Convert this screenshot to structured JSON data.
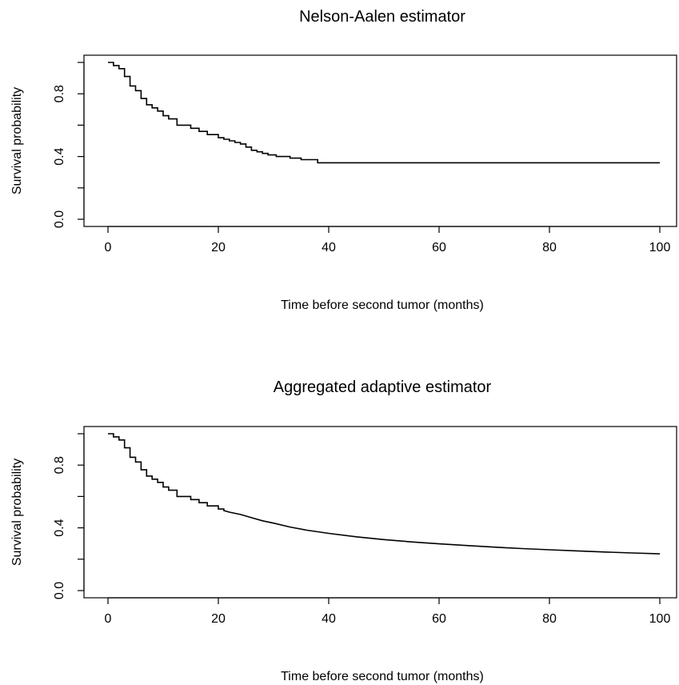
{
  "chart_data": [
    {
      "type": "line",
      "title": "Nelson-Aalen estimator",
      "xlabel": "Time before second tumor (months)",
      "ylabel": "Survival probability",
      "xlim": [
        0,
        100
      ],
      "ylim": [
        0.0,
        1.0
      ],
      "xticks": [
        0,
        20,
        40,
        60,
        80,
        100
      ],
      "xtick_labels": [
        "0",
        "20",
        "40",
        "60",
        "80",
        "100"
      ],
      "yticks": [
        0.0,
        0.2,
        0.4,
        0.6,
        0.8,
        1.0
      ],
      "ytick_labels": [
        "0.0",
        "",
        "0.4",
        "",
        "0.8",
        ""
      ],
      "grid": false,
      "legend": "none",
      "series": [
        {
          "step": true,
          "x": [
            0,
            1.0,
            2.0,
            3.0,
            4.0,
            5.0,
            6.0,
            7.0,
            8.0,
            9.0,
            10.0,
            11.0,
            12.5,
            15.0,
            16.5,
            18.0,
            20.0,
            21.0,
            22.0,
            23.0,
            24.0,
            25.0,
            26.0,
            27.0,
            28.0,
            29.0,
            30.5,
            33.0,
            35.0,
            38.0,
            100
          ],
          "y": [
            1.0,
            0.98,
            0.96,
            0.91,
            0.85,
            0.82,
            0.77,
            0.73,
            0.71,
            0.69,
            0.66,
            0.64,
            0.6,
            0.58,
            0.56,
            0.54,
            0.52,
            0.51,
            0.5,
            0.49,
            0.48,
            0.46,
            0.44,
            0.43,
            0.42,
            0.41,
            0.4,
            0.39,
            0.38,
            0.36,
            0.36
          ]
        }
      ]
    },
    {
      "type": "line",
      "title": "Aggregated adaptive estimator",
      "xlabel": "Time before second tumor (months)",
      "ylabel": "Survival probability",
      "xlim": [
        0,
        100
      ],
      "ylim": [
        0.0,
        1.0
      ],
      "xticks": [
        0,
        20,
        40,
        60,
        80,
        100
      ],
      "xtick_labels": [
        "0",
        "20",
        "40",
        "60",
        "80",
        "100"
      ],
      "yticks": [
        0.0,
        0.2,
        0.4,
        0.6,
        0.8,
        1.0
      ],
      "ytick_labels": [
        "0.0",
        "",
        "0.4",
        "",
        "0.8",
        ""
      ],
      "grid": false,
      "legend": "none",
      "series": [
        {
          "step": true,
          "x": [
            0,
            1.0,
            2.0,
            3.0,
            4.0,
            5.0,
            6.0,
            7.0,
            8.0,
            9.0,
            10.0,
            11.0,
            12.5,
            15.0,
            16.5,
            18.0,
            20.0,
            21.0
          ],
          "y": [
            1.0,
            0.98,
            0.96,
            0.91,
            0.85,
            0.82,
            0.77,
            0.73,
            0.71,
            0.69,
            0.66,
            0.64,
            0.6,
            0.58,
            0.56,
            0.54,
            0.52,
            0.51
          ]
        },
        {
          "step": false,
          "x": [
            21,
            22,
            24,
            26,
            28,
            30,
            33,
            36,
            40,
            45,
            50,
            55,
            60,
            65,
            70,
            75,
            80,
            85,
            90,
            95,
            100
          ],
          "y": [
            0.51,
            0.5,
            0.485,
            0.465,
            0.445,
            0.43,
            0.405,
            0.385,
            0.365,
            0.343,
            0.325,
            0.31,
            0.298,
            0.287,
            0.277,
            0.268,
            0.26,
            0.253,
            0.246,
            0.24,
            0.234
          ]
        }
      ]
    }
  ]
}
